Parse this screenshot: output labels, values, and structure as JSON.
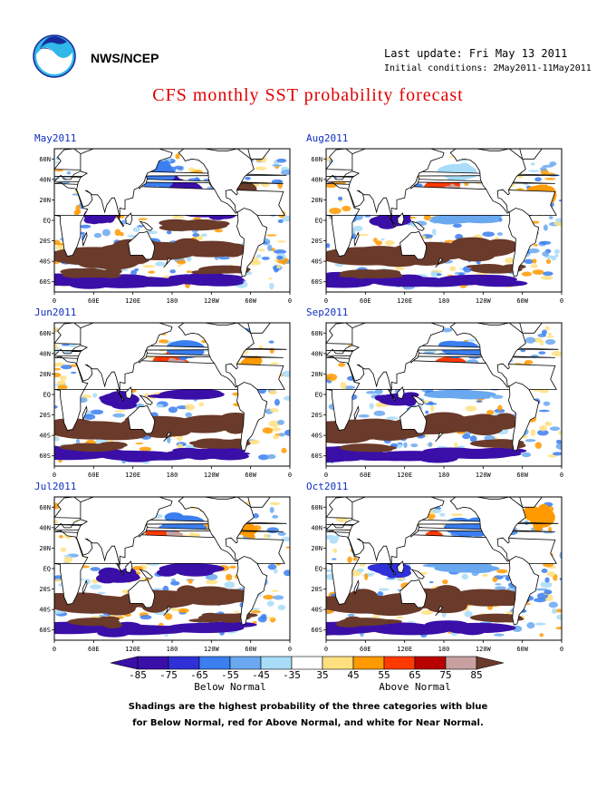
{
  "header": {
    "org": "NWS/NCEP",
    "last_update": "Last update: Fri May 13 2011",
    "initial_conditions": "Initial conditions: 2May2011-11May2011",
    "title": "CFS monthly SST probability forecast"
  },
  "panels": [
    {
      "month": "May2011",
      "pattern": 0
    },
    {
      "month": "Aug2011",
      "pattern": 3
    },
    {
      "month": "Jun2011",
      "pattern": 1
    },
    {
      "month": "Sep2011",
      "pattern": 4
    },
    {
      "month": "Jul2011",
      "pattern": 2
    },
    {
      "month": "Oct2011",
      "pattern": 5
    }
  ],
  "axes": {
    "lat_ticks": [
      "60N",
      "40N",
      "20N",
      "EQ",
      "20S",
      "40S",
      "60S"
    ],
    "lon_ticks": [
      "0",
      "60E",
      "120E",
      "180",
      "120W",
      "60W",
      "0"
    ]
  },
  "colorbar": {
    "labels": [
      "-85",
      "-75",
      "-65",
      "-55",
      "-45",
      "-35",
      "35",
      "45",
      "55",
      "65",
      "75",
      "85"
    ],
    "colors": [
      "#3a0fa8",
      "#3030d8",
      "#3a7ef0",
      "#6aa8f0",
      "#a8dcf8",
      "#ffffff",
      "#ffe080",
      "#ff9a00",
      "#ff3a00",
      "#b80000",
      "#c8a0a0"
    ],
    "end_low": "#3a0fa8",
    "end_high": "#6a3a2a",
    "below_label": "Below Normal",
    "above_label": "Above Normal"
  },
  "footnote": {
    "line1": "Shadings are the highest probability of the three categories with blue",
    "line2": "for Below Normal, red for Above Normal, and white for Near Normal."
  }
}
